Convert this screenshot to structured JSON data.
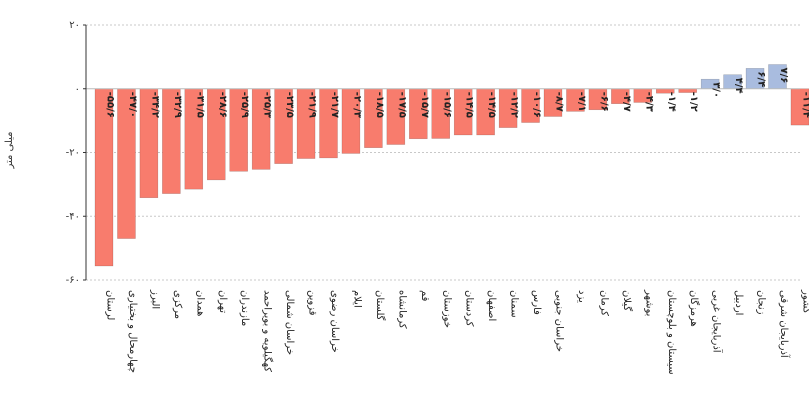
{
  "chart_data": {
    "type": "bar",
    "title": "",
    "ylabel": "میلی متر",
    "xlabel": "",
    "ylim": [
      -60,
      20
    ],
    "yticks": [
      20,
      0,
      -20,
      -40,
      -60
    ],
    "ytick_labels": [
      "۲۰",
      "۰",
      "-۲۰",
      "-۴۰",
      "-۶۰"
    ],
    "grid": true,
    "positive_color": "#a9bcdf",
    "negative_color": "#f87c6d",
    "categories": [
      "لرستان",
      "چهارمحال و بختیاری",
      "البرز",
      "مرکزی",
      "همدان",
      "تهران",
      "مازندران",
      "کهگیلویه و بویراحمد",
      "خراسان شمالی",
      "قزوین",
      "خراسان رضوی",
      "ایلام",
      "گلستان",
      "کرمانشاه",
      "قم",
      "خوزستان",
      "کردستان",
      "اصفهان",
      "سمنان",
      "فارس",
      "خراسان جنوبی",
      "یزد",
      "کرمان",
      "گیلان",
      "بوشهر",
      "سیستان و بلوچستان",
      "هرمزگان",
      "آذربایجان غربی",
      "اردبیل",
      "زنجان",
      "آذربایجان شرقی",
      "کشور"
    ],
    "values": [
      -55.6,
      -47.0,
      -34.2,
      -32.9,
      -31.5,
      -28.6,
      -25.9,
      -25.3,
      -23.5,
      -21.9,
      -21.7,
      -20.3,
      -18.5,
      -17.5,
      -15.7,
      -15.6,
      -14.5,
      -14.5,
      -12.2,
      -10.6,
      -8.7,
      -7.1,
      -6.6,
      -4.7,
      -4.3,
      -1.4,
      -1.2,
      3.0,
      4.4,
      6.4,
      7.6,
      -11.4
    ],
    "value_labels": [
      "-۵۵/۶",
      "-۴۷/۰",
      "-۳۴/۲",
      "-۳۲/۹",
      "-۳۱/۵",
      "-۲۸/۶",
      "-۲۵/۹",
      "-۲۵/۳",
      "-۲۳/۵",
      "-۲۱/۹",
      "-۲۱/۷",
      "-۲۰/۳",
      "-۱۸/۵",
      "-۱۷/۵",
      "-۱۵/۷",
      "-۱۵/۶",
      "-۱۴/۵",
      "-۱۴/۵",
      "-۱۲/۲",
      "-۱۰/۶",
      "-۸/۷",
      "-۷/۱",
      "-۶/۶",
      "-۴/۷",
      "-۴/۳",
      "-۱/۴",
      "-۱/۲",
      "۳/۰",
      "۴/۴",
      "۶/۴",
      "۷/۶",
      "-۱۱/۴"
    ]
  }
}
